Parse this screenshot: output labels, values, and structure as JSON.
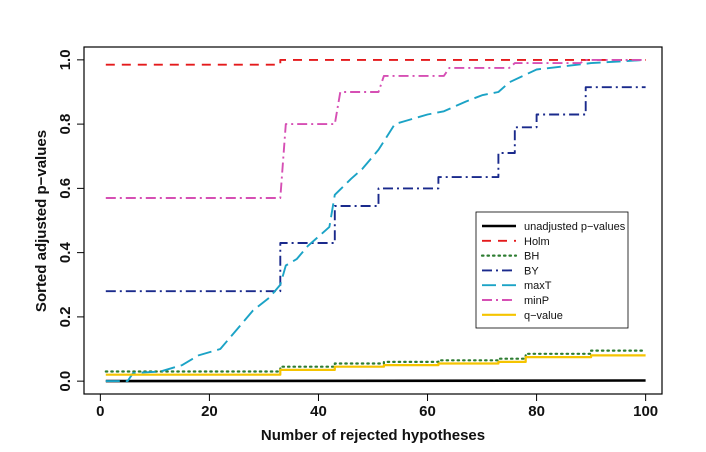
{
  "chart_data": {
    "type": "line",
    "title": "",
    "xlabel": "Number of rejected hypotheses",
    "ylabel": "Sorted adjusted p−values",
    "xlim": [
      -3,
      103
    ],
    "ylim": [
      -0.04,
      1.04
    ],
    "x_ticks": [
      0,
      20,
      40,
      60,
      80,
      100
    ],
    "x_tick_labels": [
      "0",
      "20",
      "40",
      "60",
      "80",
      "100"
    ],
    "y_ticks": [
      0.0,
      0.2,
      0.4,
      0.6,
      0.8,
      1.0
    ],
    "y_tick_labels": [
      "0.0",
      "0.2",
      "0.4",
      "0.6",
      "0.8",
      "1.0"
    ],
    "grid": false,
    "legend_position": "right",
    "series": [
      {
        "name": "unadjusted p−values",
        "color": "#000000",
        "dash": "solid",
        "width": 2.6,
        "points": [
          [
            1,
            0.0
          ],
          [
            100,
            0.002
          ]
        ]
      },
      {
        "name": "Holm",
        "color": "#e41a1c",
        "dash": "dashed",
        "width": 1.9,
        "points": [
          [
            1,
            0.985
          ],
          [
            33,
            0.985
          ],
          [
            33,
            1.0
          ],
          [
            100,
            1.0
          ]
        ]
      },
      {
        "name": "BH",
        "color": "#2e7d32",
        "dash": "dotted",
        "width": 2.2,
        "points": [
          [
            1,
            0.03
          ],
          [
            33,
            0.03
          ],
          [
            33,
            0.045
          ],
          [
            43,
            0.045
          ],
          [
            43,
            0.055
          ],
          [
            52,
            0.055
          ],
          [
            52,
            0.06
          ],
          [
            62,
            0.06
          ],
          [
            62,
            0.065
          ],
          [
            73,
            0.065
          ],
          [
            73,
            0.07
          ],
          [
            78,
            0.07
          ],
          [
            78,
            0.085
          ],
          [
            90,
            0.085
          ],
          [
            90,
            0.095
          ],
          [
            100,
            0.095
          ]
        ]
      },
      {
        "name": "BY",
        "color": "#1a2a8c",
        "dash": "dashdot",
        "width": 1.9,
        "points": [
          [
            1,
            0.28
          ],
          [
            33,
            0.28
          ],
          [
            33,
            0.43
          ],
          [
            43,
            0.43
          ],
          [
            43,
            0.545
          ],
          [
            51,
            0.545
          ],
          [
            51,
            0.6
          ],
          [
            62,
            0.6
          ],
          [
            62,
            0.635
          ],
          [
            73,
            0.635
          ],
          [
            73,
            0.71
          ],
          [
            76,
            0.71
          ],
          [
            76,
            0.79
          ],
          [
            80,
            0.79
          ],
          [
            80,
            0.83
          ],
          [
            89,
            0.83
          ],
          [
            89,
            0.915
          ],
          [
            100,
            0.915
          ]
        ]
      },
      {
        "name": "maxT",
        "color": "#1ba3c6",
        "dash": "longdash",
        "width": 1.9,
        "points": [
          [
            1,
            0.0
          ],
          [
            5,
            0.0
          ],
          [
            6,
            0.025
          ],
          [
            11,
            0.03
          ],
          [
            15,
            0.05
          ],
          [
            18,
            0.08
          ],
          [
            22,
            0.1
          ],
          [
            25,
            0.16
          ],
          [
            28,
            0.22
          ],
          [
            31,
            0.26
          ],
          [
            33,
            0.3
          ],
          [
            34,
            0.36
          ],
          [
            36,
            0.38
          ],
          [
            38,
            0.42
          ],
          [
            40,
            0.45
          ],
          [
            42,
            0.48
          ],
          [
            43,
            0.58
          ],
          [
            46,
            0.63
          ],
          [
            48,
            0.66
          ],
          [
            51,
            0.72
          ],
          [
            54,
            0.8
          ],
          [
            56,
            0.81
          ],
          [
            60,
            0.83
          ],
          [
            63,
            0.84
          ],
          [
            67,
            0.87
          ],
          [
            70,
            0.89
          ],
          [
            73,
            0.9
          ],
          [
            75,
            0.93
          ],
          [
            80,
            0.97
          ],
          [
            85,
            0.98
          ],
          [
            90,
            0.99
          ],
          [
            95,
            0.995
          ],
          [
            100,
            1.0
          ]
        ]
      },
      {
        "name": "minP",
        "color": "#d64fb4",
        "dash": "dashdot",
        "width": 1.9,
        "points": [
          [
            1,
            0.57
          ],
          [
            33,
            0.57
          ],
          [
            34,
            0.8
          ],
          [
            43,
            0.8
          ],
          [
            44,
            0.9
          ],
          [
            51,
            0.9
          ],
          [
            52,
            0.95
          ],
          [
            63,
            0.95
          ],
          [
            64,
            0.975
          ],
          [
            75,
            0.975
          ],
          [
            76,
            0.99
          ],
          [
            88,
            0.99
          ],
          [
            89,
            1.0
          ],
          [
            100,
            1.0
          ]
        ]
      },
      {
        "name": "q−value",
        "color": "#f5c400",
        "dash": "solid",
        "width": 2.2,
        "points": [
          [
            1,
            0.02
          ],
          [
            33,
            0.02
          ],
          [
            33,
            0.035
          ],
          [
            43,
            0.035
          ],
          [
            43,
            0.045
          ],
          [
            52,
            0.045
          ],
          [
            52,
            0.05
          ],
          [
            62,
            0.05
          ],
          [
            62,
            0.055
          ],
          [
            73,
            0.055
          ],
          [
            73,
            0.06
          ],
          [
            78,
            0.06
          ],
          [
            78,
            0.075
          ],
          [
            90,
            0.075
          ],
          [
            90,
            0.08
          ],
          [
            100,
            0.08
          ]
        ]
      }
    ]
  }
}
